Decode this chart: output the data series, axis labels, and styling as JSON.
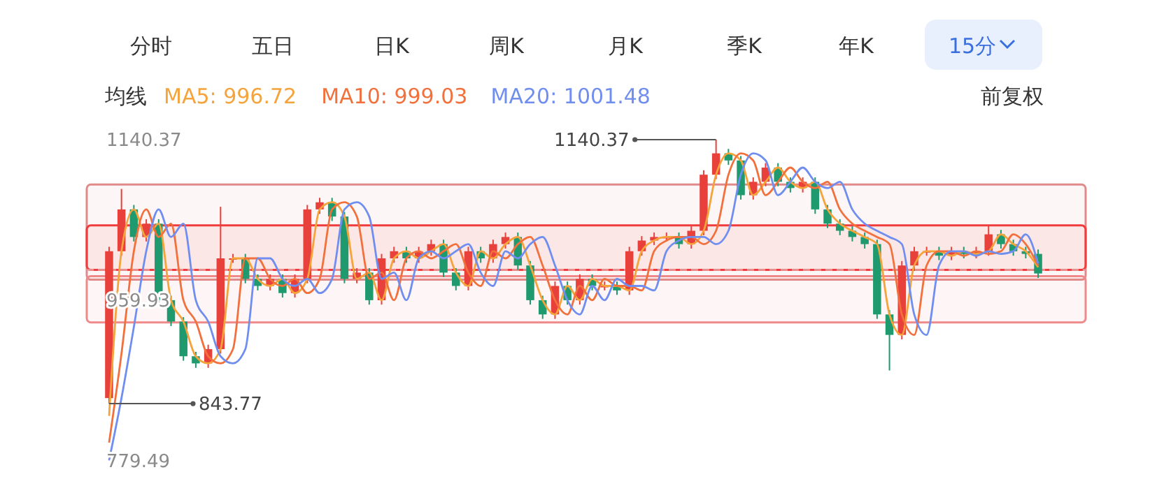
{
  "chart_data": {
    "type": "candlestick",
    "legend_title": "均线",
    "legend": "top left",
    "categories": [
      null,
      null,
      null,
      null,
      null,
      null,
      null,
      null,
      null,
      null,
      null,
      null,
      null,
      null,
      null,
      null,
      null,
      null,
      null,
      null,
      null,
      null,
      null,
      null,
      null,
      null,
      null,
      null,
      null,
      null,
      null,
      null,
      null,
      null,
      null,
      null,
      null,
      null,
      null,
      null,
      null,
      null,
      null,
      null,
      null,
      null,
      null,
      null,
      null,
      null,
      null,
      null,
      null,
      null,
      null,
      null,
      null,
      null,
      null,
      null,
      null,
      null,
      null,
      null,
      null,
      null,
      null,
      null,
      null,
      null,
      null,
      null,
      null,
      null,
      null,
      null
    ],
    "ohlc": [
      [
        850,
        1020,
        843.77,
        1015
      ],
      [
        1015,
        1085,
        1010,
        1062
      ],
      [
        1062,
        1067,
        1026,
        1031
      ],
      [
        1031,
        1051,
        1026,
        1046
      ],
      [
        1046,
        1051,
        955,
        960
      ],
      [
        960,
        965,
        931,
        936
      ],
      [
        936,
        941,
        892,
        897
      ],
      [
        897,
        902,
        884,
        889
      ],
      [
        889,
        910,
        884,
        905
      ],
      [
        905,
        1065,
        900,
        1007
      ],
      [
        1007,
        1012,
        1002,
        1007
      ],
      [
        1007,
        1012,
        979,
        984
      ],
      [
        984,
        989,
        971,
        976
      ],
      [
        976,
        989,
        971,
        984
      ],
      [
        984,
        989,
        963,
        968
      ],
      [
        968,
        989,
        963,
        984
      ],
      [
        984,
        1067,
        979,
        1062
      ],
      [
        1062,
        1075,
        1057,
        1070
      ],
      [
        1070,
        1075,
        1049,
        1054
      ],
      [
        1054,
        1059,
        979,
        984
      ],
      [
        984,
        996,
        979,
        991
      ],
      [
        991,
        996,
        955,
        960
      ],
      [
        960,
        1012,
        955,
        1007
      ],
      [
        1007,
        1020,
        1002,
        1015
      ],
      [
        1015,
        1020,
        1002,
        1007
      ],
      [
        1007,
        1020,
        1002,
        1015
      ],
      [
        1015,
        1028,
        1010,
        1023
      ],
      [
        1023,
        1028,
        986,
        991
      ],
      [
        991,
        996,
        971,
        976
      ],
      [
        976,
        1020,
        971,
        1015
      ],
      [
        1015,
        1020,
        1002,
        1007
      ],
      [
        1007,
        1028,
        1002,
        1023
      ],
      [
        1023,
        1036,
        1018,
        1031
      ],
      [
        1031,
        1036,
        994,
        999
      ],
      [
        999,
        1004,
        955,
        960
      ],
      [
        960,
        965,
        939,
        944
      ],
      [
        944,
        981,
        939,
        976
      ],
      [
        976,
        981,
        955,
        960
      ],
      [
        960,
        989,
        955,
        984
      ],
      [
        984,
        989,
        971,
        976
      ],
      [
        976,
        981,
        971,
        976
      ],
      [
        976,
        981,
        966,
        971
      ],
      [
        971,
        1020,
        966,
        1015
      ],
      [
        1015,
        1032,
        1010,
        1027
      ],
      [
        1027,
        1036,
        1022,
        1031
      ],
      [
        1031,
        1036,
        1026,
        1031
      ],
      [
        1031,
        1036,
        1018,
        1023
      ],
      [
        1023,
        1043,
        1018,
        1038
      ],
      [
        1038,
        1106,
        1033,
        1101
      ],
      [
        1101,
        1140.37,
        1096,
        1125
      ],
      [
        1125,
        1130,
        1112,
        1117
      ],
      [
        1117,
        1122,
        1073,
        1078
      ],
      [
        1078,
        1098,
        1073,
        1093
      ],
      [
        1093,
        1114,
        1088,
        1109
      ],
      [
        1109,
        1114,
        1088,
        1093
      ],
      [
        1093,
        1098,
        1081,
        1086
      ],
      [
        1086,
        1098,
        1081,
        1093
      ],
      [
        1093,
        1098,
        1057,
        1062
      ],
      [
        1062,
        1067,
        1041,
        1046
      ],
      [
        1046,
        1051,
        1033,
        1038
      ],
      [
        1038,
        1043,
        1026,
        1031
      ],
      [
        1031,
        1036,
        1018,
        1023
      ],
      [
        1023,
        1028,
        939,
        944
      ],
      [
        944,
        949,
        881,
        921
      ],
      [
        921,
        1004,
        916,
        999
      ],
      [
        999,
        1020,
        994,
        1015
      ],
      [
        1015,
        1020,
        1010,
        1015
      ],
      [
        1015,
        1020,
        1005,
        1010
      ],
      [
        1010,
        1020,
        1005,
        1015
      ],
      [
        1015,
        1020,
        1007,
        1012
      ],
      [
        1012,
        1020,
        1007,
        1015
      ],
      [
        1015,
        1044,
        1010,
        1034
      ],
      [
        1034,
        1039,
        1018,
        1023
      ],
      [
        1023,
        1028,
        1010,
        1015
      ],
      [
        1015,
        1020,
        1007,
        1012
      ],
      [
        1012,
        1017,
        985,
        990
      ]
    ],
    "colors": [
      "#e8413c",
      "#e8413c",
      "#1f9a6e",
      "#e8413c",
      "#1f9a6e",
      "#1f9a6e",
      "#1f9a6e",
      "#1f9a6e",
      "#e8413c",
      "#e8413c",
      "#e8413c",
      "#1f9a6e",
      "#1f9a6e",
      "#e8413c",
      "#1f9a6e",
      "#e8413c",
      "#e8413c",
      "#e8413c",
      "#1f9a6e",
      "#1f9a6e",
      "#e8413c",
      "#1f9a6e",
      "#e8413c",
      "#e8413c",
      "#1f9a6e",
      "#e8413c",
      "#e8413c",
      "#1f9a6e",
      "#1f9a6e",
      "#e8413c",
      "#1f9a6e",
      "#e8413c",
      "#e8413c",
      "#1f9a6e",
      "#1f9a6e",
      "#1f9a6e",
      "#e8413c",
      "#1f9a6e",
      "#e8413c",
      "#1f9a6e",
      "#e8413c",
      "#1f9a6e",
      "#e8413c",
      "#e8413c",
      "#e8413c",
      "#e8413c",
      "#1f9a6e",
      "#e8413c",
      "#e8413c",
      "#e8413c",
      "#1f9a6e",
      "#1f9a6e",
      "#e8413c",
      "#e8413c",
      "#1f9a6e",
      "#1f9a6e",
      "#e8413c",
      "#1f9a6e",
      "#1f9a6e",
      "#1f9a6e",
      "#1f9a6e",
      "#1f9a6e",
      "#1f9a6e",
      "#1f9a6e",
      "#e8413c",
      "#e8413c",
      "#e8413c",
      "#1f9a6e",
      "#e8413c",
      "#1f9a6e",
      "#e8413c",
      "#e8413c",
      "#1f9a6e",
      "#1f9a6e",
      "#1f9a6e",
      "#1f9a6e"
    ],
    "series": [
      {
        "name": "MA5: 996.72",
        "type": "line",
        "color": "#f5a33b",
        "values": [
          830,
          1015,
          1062,
          1031,
          1046,
          960,
          936,
          897,
          889,
          905,
          1007,
          1007,
          984,
          976,
          984,
          968,
          984,
          1062,
          1070,
          1054,
          984,
          991,
          960,
          1007,
          1015,
          1007,
          1015,
          1023,
          991,
          976,
          1015,
          1007,
          1023,
          1031,
          999,
          960,
          944,
          976,
          960,
          984,
          976,
          976,
          971,
          1015,
          1027,
          1031,
          1031,
          1023,
          1038,
          1101,
          1125,
          1117,
          1078,
          1093,
          1109,
          1093,
          1086,
          1093,
          1062,
          1046,
          1038,
          1031,
          1023,
          944,
          921,
          999,
          1015,
          1015,
          1010,
          1015,
          1012,
          1015,
          1034,
          1023,
          1015,
          997
        ]
      },
      {
        "name": "MA10: 999.03",
        "type": "line",
        "color": "#f2703c",
        "values": [
          800,
          900,
          1015,
          1062,
          1031,
          1046,
          960,
          936,
          897,
          889,
          905,
          1007,
          1007,
          984,
          976,
          984,
          968,
          984,
          1062,
          1070,
          1054,
          984,
          991,
          960,
          1007,
          1015,
          1007,
          1015,
          1023,
          991,
          976,
          1015,
          1007,
          1023,
          1031,
          999,
          960,
          944,
          976,
          960,
          984,
          976,
          976,
          971,
          1015,
          1027,
          1031,
          1031,
          1023,
          1038,
          1101,
          1125,
          1117,
          1078,
          1093,
          1109,
          1093,
          1086,
          1093,
          1062,
          1046,
          1038,
          1031,
          1023,
          944,
          921,
          999,
          1015,
          1015,
          1010,
          1015,
          1012,
          1015,
          1034,
          1023,
          999
        ]
      },
      {
        "name": "MA20: 1001.48",
        "type": "line",
        "color": "#6f8ef0",
        "values": [
          780,
          850,
          930,
          1015,
          1062,
          1031,
          1046,
          960,
          936,
          897,
          889,
          905,
          1007,
          1007,
          984,
          976,
          984,
          968,
          984,
          1062,
          1070,
          1054,
          984,
          991,
          960,
          1007,
          1015,
          1007,
          1015,
          1023,
          991,
          976,
          1015,
          1007,
          1023,
          1031,
          999,
          960,
          944,
          976,
          960,
          984,
          976,
          976,
          971,
          1015,
          1027,
          1031,
          1031,
          1023,
          1038,
          1101,
          1125,
          1117,
          1078,
          1093,
          1109,
          1093,
          1086,
          1093,
          1062,
          1046,
          1038,
          1031,
          1023,
          944,
          921,
          999,
          1015,
          1015,
          1010,
          1015,
          1012,
          1015,
          1034,
          1001
        ]
      }
    ],
    "ylim": [
      779.49,
      1140.37
    ],
    "yticks": [
      1140.37,
      959.93,
      779.49
    ],
    "ref_lines": [
      {
        "axis": "y",
        "value": 994,
        "color": "#e89a9a",
        "line_style": "dashed"
      }
    ],
    "bands": [
      {
        "axis": "y",
        "from": 983,
        "to": 1090,
        "color": "#e08a8a"
      },
      {
        "axis": "y",
        "from": 994,
        "to": 1044,
        "color": "#f03c3c"
      },
      {
        "axis": "y",
        "from": 935,
        "to": 987,
        "color": "#f08a8a"
      }
    ],
    "annotations": [
      "分时",
      "五日",
      "日K",
      "周K",
      "月K",
      "季K",
      "年K",
      "15分",
      "前复权",
      "1140.37",
      "843.77"
    ]
  }
}
